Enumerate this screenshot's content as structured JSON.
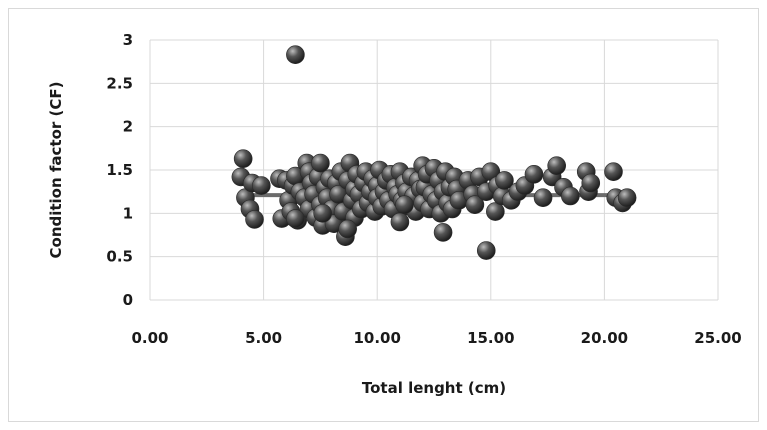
{
  "chart_data": {
    "type": "scatter",
    "title": "",
    "xlabel": "Total lenght (cm)",
    "ylabel": "Condition factor (CF)",
    "xlim": [
      0,
      25
    ],
    "ylim": [
      0,
      3
    ],
    "xticks": [
      "0.00",
      "5.00",
      "10.00",
      "15.00",
      "20.00",
      "25.00"
    ],
    "yticks": [
      "0",
      "0.5",
      "1",
      "1.5",
      "2",
      "2.5",
      "3"
    ],
    "grid": true,
    "legend": "none",
    "colors": {
      "marker": "#555555",
      "trend": "#6b6b6b",
      "grid": "#d9d9d9"
    },
    "series": [
      {
        "x": [
          4.0,
          4.1,
          4.2,
          4.4,
          4.5,
          4.6,
          4.9,
          5.7,
          5.8,
          6.0,
          6.1,
          6.2,
          6.3,
          6.4,
          6.4,
          6.5,
          6.6,
          6.8,
          6.9,
          7.0,
          7.0,
          7.1,
          7.2,
          7.3,
          7.4,
          7.5,
          7.5,
          7.6,
          7.7,
          7.8,
          7.9,
          8.0,
          8.1,
          8.2,
          8.3,
          8.4,
          8.5,
          8.6,
          8.7,
          8.8,
          8.9,
          9.0,
          9.0,
          9.1,
          9.2,
          9.3,
          9.4,
          9.5,
          9.6,
          9.7,
          9.8,
          9.9,
          10.0,
          10.0,
          10.1,
          10.2,
          10.3,
          10.4,
          10.5,
          10.6,
          10.7,
          10.8,
          10.9,
          11.0,
          11.0,
          11.1,
          11.2,
          11.3,
          11.4,
          11.5,
          11.6,
          11.7,
          11.8,
          11.9,
          12.0,
          12.0,
          12.1,
          12.2,
          12.3,
          12.4,
          12.5,
          12.6,
          12.7,
          12.8,
          12.9,
          13.0,
          13.1,
          13.2,
          13.3,
          13.4,
          13.5,
          13.6,
          14.0,
          14.2,
          14.3,
          14.5,
          14.8,
          15.0,
          15.2,
          15.3,
          15.5,
          15.6,
          15.9,
          16.2,
          16.5,
          16.9,
          17.3,
          17.7,
          17.9,
          18.2,
          18.5,
          19.2,
          19.3,
          19.4,
          20.4,
          20.5,
          20.8,
          21.0,
          6.4,
          12.9,
          8.7,
          7.6,
          11.2,
          14.8
        ],
        "y": [
          1.42,
          1.63,
          1.18,
          1.05,
          1.35,
          0.93,
          1.32,
          1.4,
          0.94,
          1.38,
          1.15,
          1.02,
          1.32,
          2.83,
          1.43,
          0.92,
          1.25,
          1.18,
          1.58,
          1.48,
          1.05,
          1.35,
          1.22,
          0.95,
          1.42,
          1.58,
          1.1,
          0.86,
          1.3,
          1.18,
          1.4,
          1.05,
          0.88,
          1.35,
          1.22,
          1.48,
          1.02,
          0.73,
          1.38,
          1.58,
          1.15,
          1.28,
          0.95,
          1.45,
          1.22,
          1.05,
          1.35,
          1.48,
          1.12,
          1.25,
          1.4,
          1.02,
          1.32,
          1.18,
          1.5,
          1.08,
          1.25,
          1.38,
          1.15,
          1.45,
          1.05,
          1.3,
          1.22,
          1.48,
          0.9,
          1.15,
          1.35,
          1.25,
          1.08,
          1.42,
          1.2,
          1.02,
          1.38,
          1.28,
          1.55,
          1.12,
          1.3,
          1.45,
          1.05,
          1.22,
          1.52,
          1.15,
          1.38,
          1.0,
          1.25,
          1.48,
          1.12,
          1.3,
          1.05,
          1.42,
          1.28,
          1.15,
          1.38,
          1.22,
          1.1,
          1.42,
          1.25,
          1.48,
          1.02,
          1.32,
          1.2,
          1.38,
          1.15,
          1.25,
          1.32,
          1.45,
          1.18,
          1.42,
          1.55,
          1.3,
          1.2,
          1.48,
          1.25,
          1.35,
          1.48,
          1.18,
          1.12,
          1.18,
          0.94,
          0.78,
          0.82,
          1.0,
          1.1,
          0.57
        ]
      }
    ],
    "trendline": {
      "x": [
        4.0,
        21.0
      ],
      "y": [
        1.21,
        1.21
      ]
    }
  }
}
